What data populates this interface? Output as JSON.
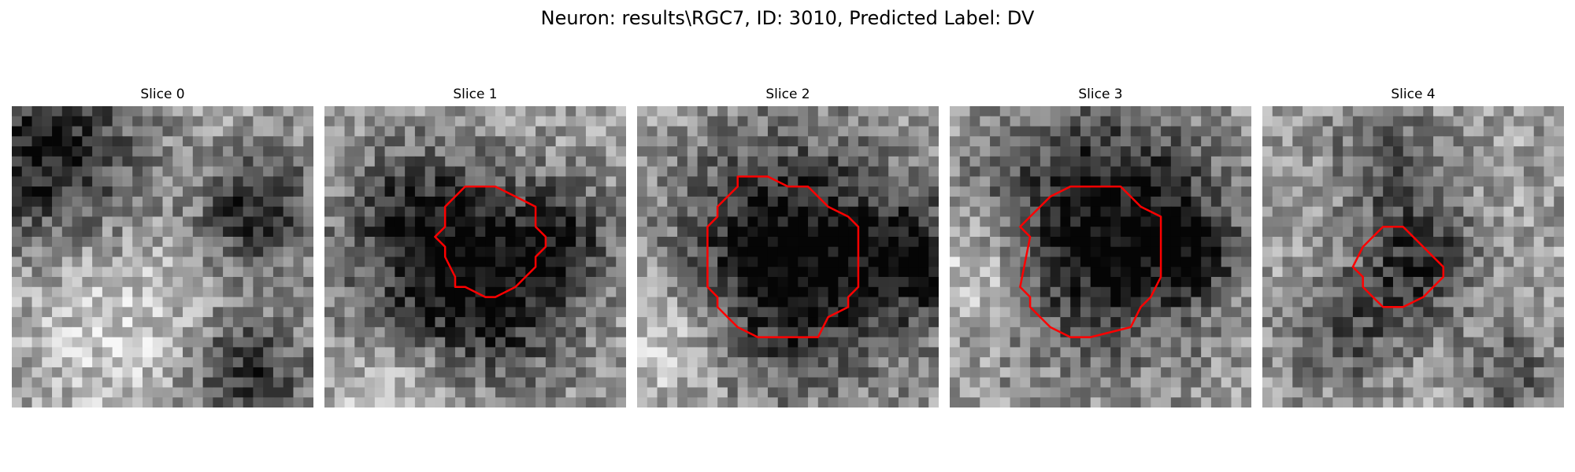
{
  "figure": {
    "title": "Neuron: results\\RGC7, ID: 3010, Predicted Label: DV"
  },
  "colors": {
    "contour": "#ff0000",
    "colormap": "grayscale"
  },
  "panels": [
    {
      "title": "Slice 0",
      "has_contour": false
    },
    {
      "title": "Slice 1",
      "has_contour": true
    },
    {
      "title": "Slice 2",
      "has_contour": true
    },
    {
      "title": "Slice 3",
      "has_contour": true
    },
    {
      "title": "Slice 4",
      "has_contour": true
    }
  ]
}
